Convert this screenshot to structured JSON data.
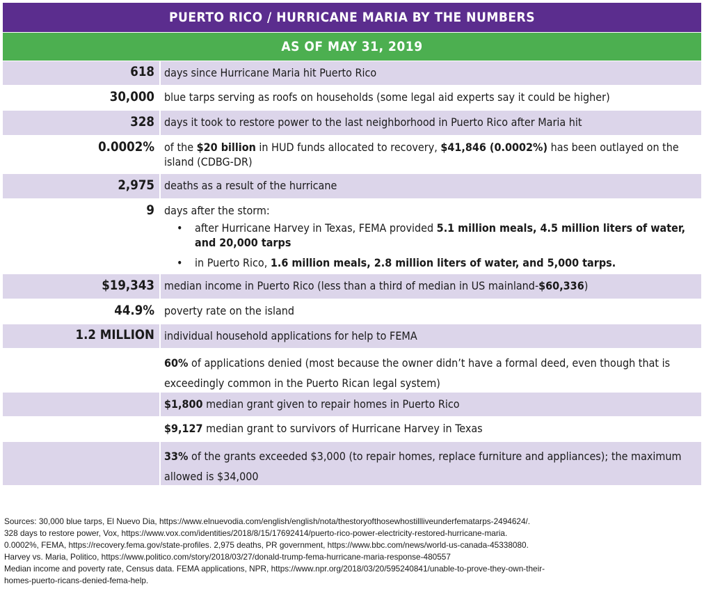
{
  "colors": {
    "header": "#5b2d8e",
    "subheader": "#4caf50",
    "row_alt": "#dcd5ea"
  },
  "header": {
    "title": "PUERTO RICO / HURRICANE MARIA BY THE NUMBERS"
  },
  "subheader": {
    "title": "AS OF MAY 31, 2019"
  },
  "rows": {
    "r1": {
      "number": "618",
      "text": "days since Hurricane Maria hit Puerto Rico"
    },
    "r2": {
      "number": "30,000",
      "text": "blue tarps serving as roofs on households (some legal aid experts say it could be higher)"
    },
    "r3": {
      "number": "328",
      "text": "days it took to restore power to the last neighborhood in Puerto Rico after Maria hit"
    },
    "r4": {
      "number": "0.0002%",
      "t1": "of the ",
      "b1": "$20 billion",
      "t2": " in HUD funds allocated to recovery, ",
      "b2": "$41,846 (0.0002%)",
      "t3": " has been outlayed on the island (CDBG-DR)"
    },
    "r5": {
      "number": "2,975",
      "text": "deaths as a result of the hurricane"
    },
    "r6": {
      "number": "9",
      "intro": "days after the storm:",
      "bullet": "•",
      "b1_t1": "after Hurricane Harvey in Texas, FEMA provided ",
      "b1_b1": "5.1 million meals, 4.5 million liters of water, and 20,000 tarps",
      "b2_t1": "in Puerto Rico, ",
      "b2_b1": "1.6 million meals, 2.8 million liters of water, and 5,000 tarps."
    },
    "r7": {
      "number": "$19,343",
      "t1": "median income in Puerto Rico (less than a third of median in US mainland-",
      "b1": "$60,336",
      "t2": ")"
    },
    "r8": {
      "number": "44.9%",
      "text": "poverty rate on the island"
    },
    "r9": {
      "number": "1.2 MILLION",
      "text": "individual household applications for help to FEMA"
    },
    "r10": {
      "b1": "60%",
      "t1": " of applications denied (most because the owner didn’t have a formal deed, even though that is exceedingly common in the Puerto Rican legal system)"
    },
    "r11": {
      "b1": "$1,800",
      "t1": " median grant given to repair homes in Puerto Rico"
    },
    "r12": {
      "b1": "$9,127",
      "t1": " median grant to survivors of Hurricane Harvey in Texas"
    },
    "r13": {
      "b1": "33%",
      "t1": " of the grants exceeded $3,000 (to repair homes, replace furniture and appliances); the maximum allowed is $34,000"
    }
  },
  "sources": [
    "Sources: 30,000 blue tarps, El Nuevo Dia, https://www.elnuevodia.com/english/english/nota/thestoryofthosewhostillliveunderfematarps-2494624/.",
    "328 days to restore power, Vox, https://www.vox.com/identities/2018/8/15/17692414/puerto-rico-power-electricity-restored-hurricane-maria.",
    "0.0002%, FEMA, https://recovery.fema.gov/state-profiles. 2,975 deaths, PR government, https://www.bbc.com/news/world-us-canada-45338080.",
    "Harvey vs. Maria, Politico, https://www.politico.com/story/2018/03/27/donald-trump-fema-hurricane-maria-response-480557",
    "Median income and poverty rate, Census data. FEMA applications, NPR, https://www.npr.org/2018/03/20/595240841/unable-to-prove-they-own-their-",
    "homes-puerto-ricans-denied-fema-help."
  ]
}
